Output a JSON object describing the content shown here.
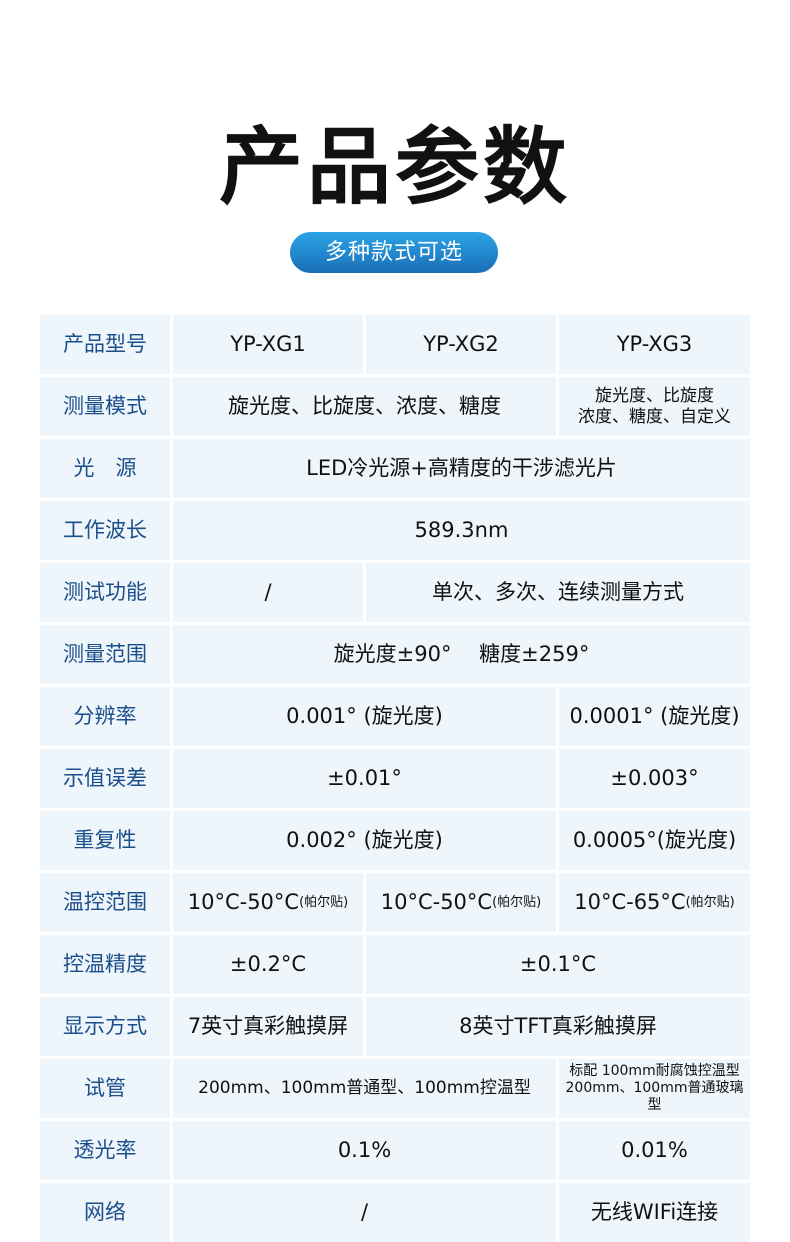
{
  "title": "产品参数",
  "subtitle": "多种款式可选",
  "rows": [
    {
      "label": "产品型号",
      "cells": [
        {
          "text": "YP-XG1",
          "span": 1
        },
        {
          "text": "YP-XG2",
          "span": 1
        },
        {
          "text": "YP-XG3",
          "span": 1
        }
      ]
    },
    {
      "label": "测量模式",
      "cells": [
        {
          "text": "旋光度、比旋度、浓度、糖度",
          "span": 2
        },
        {
          "text": "旋光度、比旋度\n浓度、糖度、自定义",
          "span": 1,
          "size": "sm"
        }
      ]
    },
    {
      "label": "光　源",
      "cells": [
        {
          "text": "LED冷光源+高精度的干涉滤光片",
          "span": 3
        }
      ]
    },
    {
      "label": "工作波长",
      "cells": [
        {
          "text": "589.3nm",
          "span": 3
        }
      ]
    },
    {
      "label": "测试功能",
      "cells": [
        {
          "text": "/",
          "span": 1
        },
        {
          "text": "单次、多次、连续测量方式",
          "span": 2
        }
      ]
    },
    {
      "label": "测量范围",
      "cells": [
        {
          "text": "旋光度±90°　 糖度±259°",
          "span": 3
        }
      ]
    },
    {
      "label": "分辨率",
      "cells": [
        {
          "text": "0.001° (旋光度)",
          "span": 2
        },
        {
          "text": "0.0001° (旋光度)",
          "span": 1
        }
      ]
    },
    {
      "label": "示值误差",
      "cells": [
        {
          "text": "±0.01°",
          "span": 2
        },
        {
          "text": "±0.003°",
          "span": 1
        }
      ]
    },
    {
      "label": "重复性",
      "cells": [
        {
          "text": "0.002° (旋光度)",
          "span": 2
        },
        {
          "text": "0.0005°(旋光度)",
          "span": 1
        }
      ]
    },
    {
      "label": "温控范围",
      "cells": [
        {
          "text": "10°C-50°C",
          "note": "(帕尔贴)",
          "span": 1
        },
        {
          "text": "10°C-50°C",
          "note": "(帕尔贴)",
          "span": 1
        },
        {
          "text": "10°C-65°C",
          "note": "(帕尔贴)",
          "span": 1
        }
      ]
    },
    {
      "label": "控温精度",
      "cells": [
        {
          "text": "±0.2°C",
          "span": 1
        },
        {
          "text": "±0.1°C",
          "span": 2
        }
      ]
    },
    {
      "label": "显示方式",
      "cells": [
        {
          "text": "7英寸真彩触摸屏",
          "span": 1
        },
        {
          "text": "8英寸TFT真彩触摸屏",
          "span": 2
        }
      ]
    },
    {
      "label": "试管",
      "cells": [
        {
          "text": "200mm、100mm普通型、100mm控温型",
          "span": 2,
          "size": "sm"
        },
        {
          "text": "标配 100mm耐腐蚀控温型\n200mm、100mm普通玻璃型",
          "span": 1,
          "size": "xs"
        }
      ]
    },
    {
      "label": "透光率",
      "cells": [
        {
          "text": "0.1%",
          "span": 2
        },
        {
          "text": "0.01%",
          "span": 1
        }
      ]
    },
    {
      "label": "网络",
      "cells": [
        {
          "text": "/",
          "span": 2
        },
        {
          "text": "无线WIFi连接",
          "span": 1
        }
      ]
    }
  ]
}
